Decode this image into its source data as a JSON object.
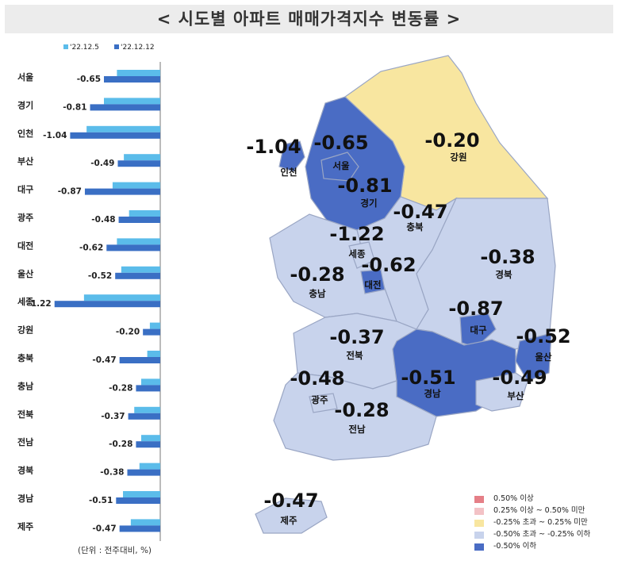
{
  "title": "< 시도별 아파트 매매가격지수 변동률 >",
  "unit_note": "(단위 : 전주대비, %)",
  "colors": {
    "series_prev": "#5bbcea",
    "series_curr": "#3a6fc4",
    "map_strong_down": "#4a6cc4",
    "map_mild_down": "#c8d3ec",
    "map_flat": "#f8e6a0",
    "map_mild_up": "#f3c2c6",
    "map_strong_up": "#e57f87"
  },
  "chart_data": {
    "type": "bar",
    "orientation": "horizontal",
    "categories": [
      "서울",
      "경기",
      "인천",
      "부산",
      "대구",
      "광주",
      "대전",
      "울산",
      "세종",
      "강원",
      "충북",
      "충남",
      "전북",
      "전남",
      "경북",
      "경남",
      "제주"
    ],
    "series": [
      {
        "name": "'22.12.5",
        "values": [
          -0.5,
          -0.65,
          -0.85,
          -0.42,
          -0.55,
          -0.36,
          -0.5,
          -0.45,
          -0.88,
          -0.12,
          -0.15,
          -0.22,
          -0.3,
          -0.22,
          -0.24,
          -0.43,
          -0.34
        ]
      },
      {
        "name": "'22.12.12",
        "values": [
          -0.65,
          -0.81,
          -1.04,
          -0.49,
          -0.87,
          -0.48,
          -0.62,
          -0.52,
          -1.22,
          -0.2,
          -0.47,
          -0.28,
          -0.37,
          -0.28,
          -0.38,
          -0.51,
          -0.47
        ]
      }
    ],
    "data_labels": [
      "-0.65",
      "-0.81",
      "-1.04",
      "-0.49",
      "-0.87",
      "-0.48",
      "-0.62",
      "-0.52",
      "-1.22",
      "-0.20",
      "-0.47",
      "-0.28",
      "-0.37",
      "-0.28",
      "-0.38",
      "-0.51",
      "-0.47"
    ],
    "xlim": [
      -1.3,
      0
    ],
    "legend_position": "top"
  },
  "map": {
    "regions": [
      {
        "id": "seoul",
        "name": "서울",
        "value": "-0.65"
      },
      {
        "id": "gyeonggi",
        "name": "경기",
        "value": "-0.81"
      },
      {
        "id": "incheon",
        "name": "인천",
        "value": "-1.04"
      },
      {
        "id": "gangwon",
        "name": "강원",
        "value": "-0.20"
      },
      {
        "id": "chungbuk",
        "name": "충북",
        "value": "-0.47"
      },
      {
        "id": "sejong",
        "name": "세종",
        "value": "-1.22"
      },
      {
        "id": "daejeon",
        "name": "대전",
        "value": "-0.62"
      },
      {
        "id": "chungnam",
        "name": "충남",
        "value": "-0.28"
      },
      {
        "id": "gyeongbuk",
        "name": "경북",
        "value": "-0.38"
      },
      {
        "id": "daegu",
        "name": "대구",
        "value": "-0.87"
      },
      {
        "id": "ulsan",
        "name": "울산",
        "value": "-0.52"
      },
      {
        "id": "jeonbuk",
        "name": "전북",
        "value": "-0.37"
      },
      {
        "id": "gyeongnam",
        "name": "경남",
        "value": "-0.51"
      },
      {
        "id": "busan",
        "name": "부산",
        "value": "-0.49"
      },
      {
        "id": "gwangju",
        "name": "광주",
        "value": "-0.48"
      },
      {
        "id": "jeonnam",
        "name": "전남",
        "value": "-0.28"
      },
      {
        "id": "jeju",
        "name": "제주",
        "value": "-0.47"
      }
    ]
  },
  "legend": [
    {
      "label": "0.50% 이상",
      "color": "#e57f87"
    },
    {
      "label": "0.25% 이상 ~ 0.50% 미만",
      "color": "#f3c2c6"
    },
    {
      "label": "-0.25% 초과 ~ 0.25% 미만",
      "color": "#f8e6a0"
    },
    {
      "label": "-0.50% 초과 ~ -0.25% 이하",
      "color": "#c8d3ec"
    },
    {
      "label": "-0.50% 이하",
      "color": "#4a6cc4"
    }
  ]
}
